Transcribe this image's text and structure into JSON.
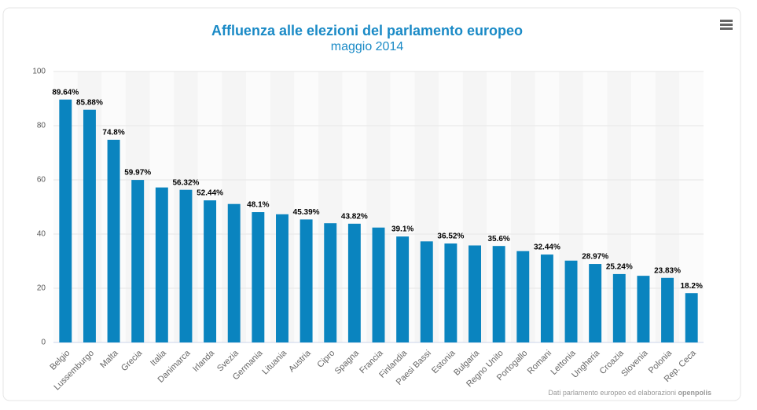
{
  "chart_data": {
    "type": "bar",
    "title": "Affluenza alle elezioni del parlamento europeo",
    "subtitle": "maggio 2014",
    "categories": [
      "Belgio",
      "Lussemburgo",
      "Malta",
      "Grecia",
      "Italia",
      "Danimarca",
      "Irlanda",
      "Svezia",
      "Germania",
      "Lituania",
      "Austria",
      "Cipro",
      "Spagna",
      "Francia",
      "Finlandia",
      "Paesi Bassi",
      "Estonia",
      "Bulgaria",
      "Regno Unito",
      "Portogallo",
      "Romani",
      "Lettonia",
      "Ungheria",
      "Croazia",
      "Slovenia",
      "Polonia",
      "Rep. Ceca"
    ],
    "values": [
      89.64,
      85.88,
      74.8,
      59.97,
      57.2,
      56.32,
      52.44,
      51.1,
      48.1,
      47.3,
      45.39,
      44.0,
      43.82,
      42.4,
      39.1,
      37.3,
      36.52,
      35.8,
      35.6,
      33.7,
      32.44,
      30.2,
      28.97,
      25.24,
      24.6,
      23.83,
      18.2
    ],
    "value_labels": [
      "89.64%",
      "85.88%",
      "74.8%",
      "59.97%",
      null,
      "56.32%",
      "52.44%",
      null,
      "48.1%",
      null,
      "45.39%",
      null,
      "43.82%",
      null,
      "39.1%",
      null,
      "36.52%",
      null,
      "35.6%",
      null,
      "32.44%",
      null,
      "28.97%",
      "25.24%",
      null,
      "23.83%",
      "18.2%"
    ],
    "color": "#0a84bf",
    "ylim": [
      0,
      100
    ],
    "yticks": [
      0,
      20,
      40,
      60,
      80,
      100
    ],
    "grid": true,
    "credits": "Dati parlamento europeo ed elaborazioni",
    "credits_bold": "openpolis"
  }
}
